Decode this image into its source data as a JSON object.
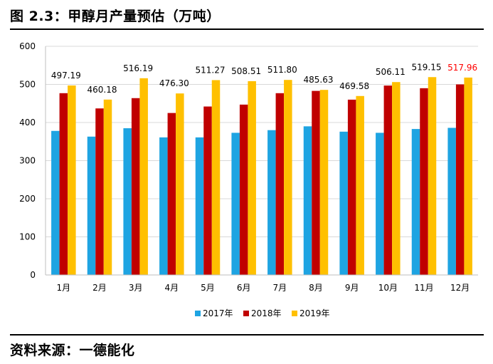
{
  "figure_title": "图 2.3：甲醇月产量预估（万吨）",
  "source": "资料来源：一德能化",
  "chart_data": {
    "type": "bar",
    "categories": [
      "1月",
      "2月",
      "3月",
      "4月",
      "5月",
      "6月",
      "7月",
      "8月",
      "9月",
      "10月",
      "11月",
      "12月"
    ],
    "series": [
      {
        "name": "2017年",
        "color": "#1EA4E2",
        "values": [
          378,
          363,
          385,
          361,
          361,
          373,
          380,
          390,
          376,
          373,
          383,
          386
        ]
      },
      {
        "name": "2018年",
        "color": "#C00000",
        "values": [
          477,
          437,
          464,
          425,
          442,
          447,
          477,
          483,
          460,
          497,
          490,
          500
        ]
      },
      {
        "name": "2019年",
        "color": "#FFC000",
        "values": [
          497.19,
          460.18,
          516.19,
          476.3,
          511.27,
          508.51,
          511.8,
          485.63,
          469.58,
          506.11,
          519.15,
          517.96
        ]
      }
    ],
    "data_labels": [
      "497.19",
      "460.18",
      "516.19",
      "476.30",
      "511.27",
      "508.51",
      "511.80",
      "485.63",
      "469.58",
      "506.11",
      "519.15",
      "517.96"
    ],
    "highlight_label_color": "#FF0000",
    "ylim": [
      0,
      600
    ],
    "yticks": [
      0,
      100,
      200,
      300,
      400,
      500,
      600
    ],
    "grid": true,
    "legend": "bottom"
  }
}
